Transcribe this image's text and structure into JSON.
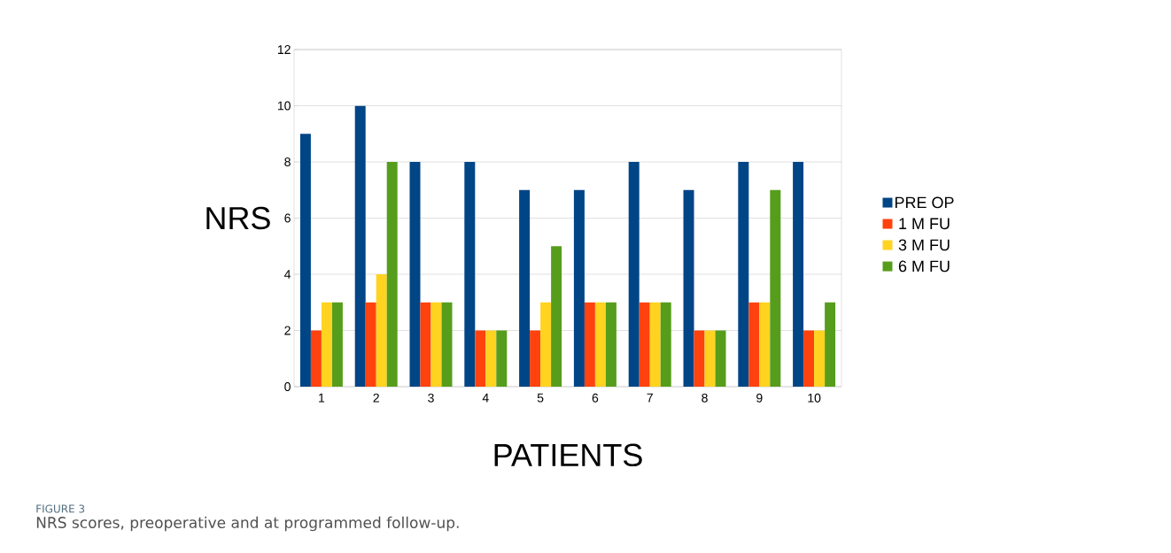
{
  "chart_data": {
    "type": "bar",
    "xlabel": "PATIENTS",
    "ylabel": "NRS",
    "categories": [
      "1",
      "2",
      "3",
      "4",
      "5",
      "6",
      "7",
      "8",
      "9",
      "10"
    ],
    "series": [
      {
        "name": "PRE OP",
        "color": "#004586",
        "values": [
          9,
          10,
          8,
          8,
          7,
          7,
          8,
          7,
          8,
          8
        ]
      },
      {
        "name": "1 M FU",
        "color": "#ff420e",
        "values": [
          2,
          3,
          3,
          2,
          2,
          3,
          3,
          2,
          3,
          2
        ]
      },
      {
        "name": "3 M FU",
        "color": "#ffd320",
        "values": [
          3,
          4,
          3,
          2,
          3,
          3,
          3,
          2,
          3,
          2
        ]
      },
      {
        "name": "6 M FU",
        "color": "#579d1c",
        "values": [
          3,
          8,
          3,
          2,
          5,
          3,
          3,
          2,
          7,
          3
        ]
      }
    ],
    "ylim": [
      0,
      12
    ],
    "yticks": [
      0,
      2,
      4,
      6,
      8,
      10,
      12
    ],
    "grid": "y",
    "legend": "right",
    "annotations": [
      "FIGURE 3",
      "NRS scores, preoperative and at programmed follow-up."
    ]
  }
}
